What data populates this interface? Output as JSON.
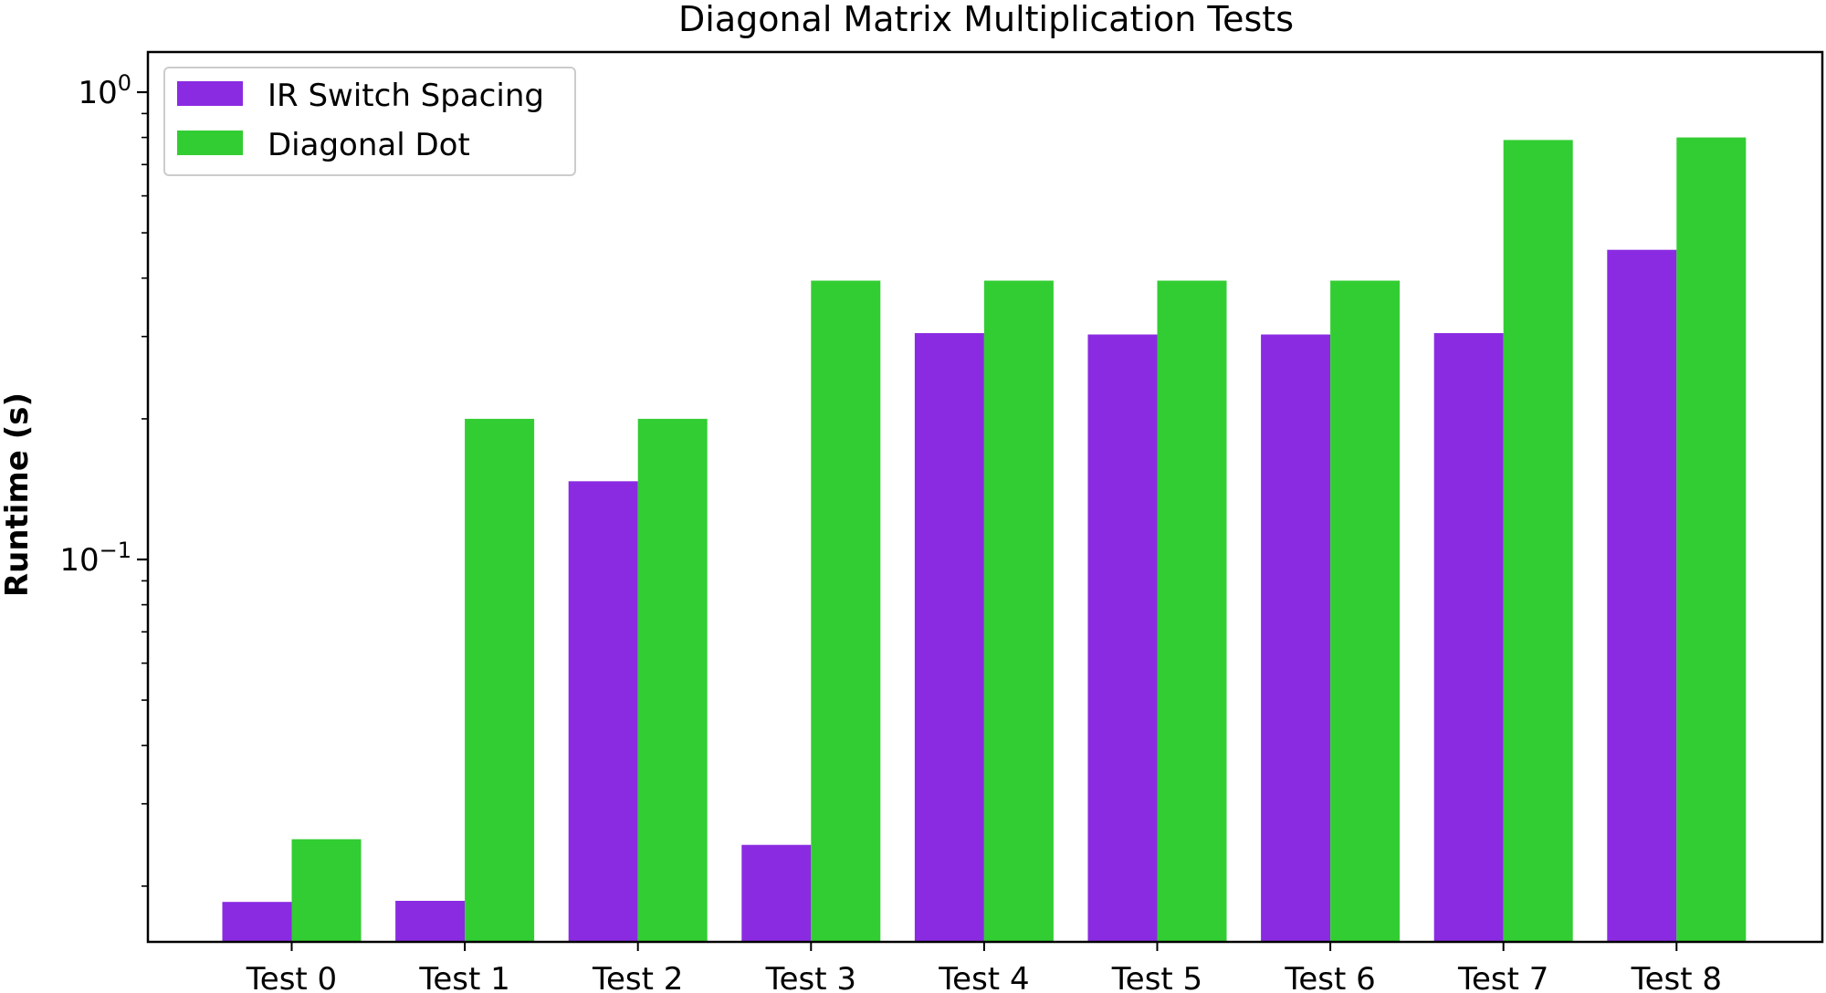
{
  "chart_data": {
    "type": "bar",
    "title": "Diagonal Matrix Multiplication Tests",
    "xlabel": "",
    "ylabel": "Runtime (s)",
    "yscale": "log",
    "ylim": [
      0.0152,
      1.0
    ],
    "ytick_labels": [
      {
        "value": 1.0,
        "base": "10",
        "exp": "0"
      },
      {
        "value": 0.1,
        "base": "10",
        "exp": "−1"
      }
    ],
    "categories": [
      "Test 0",
      "Test 1",
      "Test 2",
      "Test 3",
      "Test 4",
      "Test 5",
      "Test 6",
      "Test 7",
      "Test 8"
    ],
    "series": [
      {
        "name": "IR Switch Spacing",
        "color": "#8a2be2",
        "values": [
          0.0185,
          0.0186,
          0.147,
          0.0245,
          0.305,
          0.303,
          0.303,
          0.305,
          0.46
        ]
      },
      {
        "name": "Diagonal Dot",
        "color": "#32cd32",
        "values": [
          0.0252,
          0.2,
          0.2,
          0.395,
          0.395,
          0.395,
          0.395,
          0.79,
          0.8
        ]
      }
    ],
    "legend_position": "top-left",
    "grid": false
  }
}
